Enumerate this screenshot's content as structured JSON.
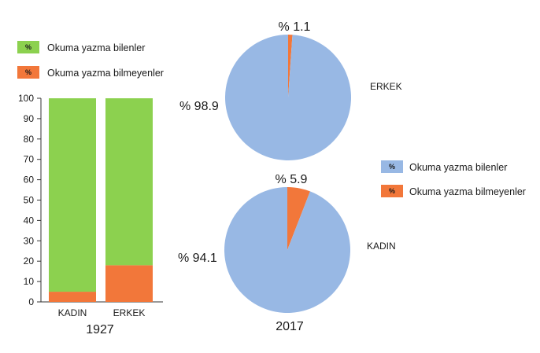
{
  "colors": {
    "bar_literate": "#8CD14F",
    "bar_illiterate": "#F2773A",
    "pie_literate": "#98B8E4",
    "pie_illiterate": "#F2773A",
    "axis": "#333333"
  },
  "chart_data": [
    {
      "type": "bar",
      "stacked": true,
      "categories": [
        "KADIN",
        "ERKEK"
      ],
      "series": [
        {
          "name": "Okuma yazma bilmeyenler",
          "values": [
            5,
            18
          ]
        },
        {
          "name": "Okuma yazma bilenler",
          "values": [
            95,
            82
          ]
        }
      ],
      "yticks": [
        "0",
        "10",
        "20",
        "30",
        "40",
        "50",
        "60",
        "70",
        "80",
        "90",
        "100"
      ],
      "ylim": [
        0,
        100
      ],
      "xlabel": "1927",
      "legend": {
        "placement": "top-left",
        "items": [
          {
            "symbol": "%",
            "label": "Okuma yazma bilenler"
          },
          {
            "symbol": "%",
            "label": "Okuma yazma bilmeyenler"
          }
        ]
      }
    },
    {
      "type": "pie",
      "title": "ERKEK",
      "slices": [
        {
          "name": "Okuma yazma bilmeyenler",
          "value": 1.1,
          "label": "% 1.1"
        },
        {
          "name": "Okuma yazma bilenler",
          "value": 98.9,
          "label": "% 98.9"
        }
      ]
    },
    {
      "type": "pie",
      "title": "KADIN",
      "slices": [
        {
          "name": "Okuma yazma bilmeyenler",
          "value": 5.9,
          "label": "% 5.9"
        },
        {
          "name": "Okuma yazma bilenler",
          "value": 94.1,
          "label": "% 94.1"
        }
      ],
      "xlabel": "2017",
      "legend": {
        "placement": "right",
        "items": [
          {
            "symbol": "%",
            "label": "Okuma yazma bilenler"
          },
          {
            "symbol": "%",
            "label": "Okuma yazma bilmeyenler"
          }
        ]
      }
    }
  ]
}
